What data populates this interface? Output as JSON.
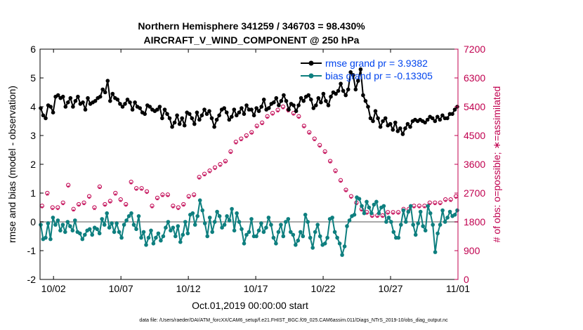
{
  "chart_data": {
    "type": "line",
    "title_line1": "Northern Hemisphere 341259 / 346703 = 98.430%",
    "title_line2": "AIRCRAFT_V_WIND_COMPONENT @ 250 hPa",
    "xlabel": "Oct.01,2019 00:00:00 start",
    "ylabel_left": "rmse and bias (model - observation)",
    "ylabel_right": "# of obs: o=possible; ∗=assimilated",
    "footer": "data file: /Users/raeder/DAI/ATM_forcXX/CAM6_setup/f.e21.FHIST_BGC.f09_025.CAM6assim.011/Diags_NTrS_2019-10/obs_diag_output.nc",
    "xlim": [
      1,
      32
    ],
    "ylim_left": [
      -2,
      6
    ],
    "ylim_right": [
      0,
      7200
    ],
    "x_ticks": [
      {
        "value": 2,
        "label": "10/02"
      },
      {
        "value": 7,
        "label": "10/07"
      },
      {
        "value": 12,
        "label": "10/12"
      },
      {
        "value": 17,
        "label": "10/17"
      },
      {
        "value": 22,
        "label": "10/22"
      },
      {
        "value": 27,
        "label": "10/27"
      },
      {
        "value": 32,
        "label": "11/01"
      }
    ],
    "y_left_ticks": [
      "-2",
      "-1",
      "0",
      "1",
      "2",
      "3",
      "4",
      "5",
      "6"
    ],
    "y_right_ticks": [
      "0",
      "900",
      "1800",
      "2700",
      "3600",
      "4500",
      "5400",
      "6300",
      "7200"
    ],
    "colors": {
      "rmse": "#000000",
      "bias": "#0e7f7f",
      "obs": "#c0004f",
      "legend_text": "#0044ee",
      "zero_line": "#aaaaaa"
    },
    "series": [
      {
        "name": "rmse grand pr = 3.9382",
        "axis": "left",
        "values": [
          3.95,
          3.7,
          3.6,
          4.05,
          4.0,
          3.8,
          4.35,
          4.4,
          4.3,
          4.35,
          4.0,
          4.15,
          4.3,
          4.0,
          4.2,
          4.35,
          4.1,
          4.15,
          3.9,
          4.3,
          4.1,
          4.15,
          4.2,
          4.3,
          4.35,
          4.6,
          4.5,
          4.9,
          4.2,
          4.45,
          4.3,
          4.25,
          4.1,
          4.0,
          4.1,
          4.25,
          4.15,
          3.9,
          4.15,
          4.0,
          3.95,
          3.8,
          3.75,
          4.05,
          4.0,
          3.9,
          3.85,
          3.9,
          4.0,
          3.6,
          3.9,
          3.75,
          3.6,
          3.3,
          3.45,
          3.7,
          3.4,
          3.6,
          3.35,
          3.8,
          3.75,
          3.6,
          3.4,
          3.8,
          3.55,
          3.7,
          3.9,
          3.75,
          3.85,
          3.6,
          3.3,
          3.55,
          3.7,
          3.9,
          3.95,
          3.8,
          3.55,
          3.65,
          3.9,
          3.7,
          3.8,
          3.95,
          3.75,
          4.05,
          3.9,
          3.9,
          3.7,
          3.95,
          3.85,
          4.0,
          4.25,
          3.9,
          3.95,
          4.1,
          4.15,
          4.3,
          4.05,
          4.2,
          4.4,
          4.2,
          3.9,
          4.1,
          4.05,
          3.85,
          4.05,
          4.3,
          4.2,
          4.35,
          4.4,
          4.25,
          3.95,
          4.05,
          4.3,
          4.15,
          4.45,
          4.2,
          4.05,
          4.35,
          4.5,
          4.45,
          4.55,
          4.8,
          4.55,
          4.4,
          4.6,
          5.2,
          5.1,
          4.6,
          4.9,
          5.3,
          4.4,
          4.2,
          4.0,
          3.6,
          3.5,
          3.85,
          3.6,
          3.3,
          3.5,
          3.6,
          3.35,
          3.4,
          3.2,
          3.45,
          3.15,
          3.25,
          3.05,
          3.25,
          3.4,
          3.3,
          3.5,
          3.55,
          3.5,
          3.55,
          3.5,
          3.45,
          3.55,
          3.65,
          3.6,
          3.5,
          3.65,
          3.55,
          3.7,
          3.6,
          3.6,
          3.75,
          3.75,
          3.9,
          4.0
        ]
      },
      {
        "name": "bias grand pr = -0.13305",
        "axis": "left",
        "values": [
          -0.1,
          -0.6,
          -0.55,
          -0.05,
          -0.6,
          0.15,
          -0.1,
          0.05,
          -0.3,
          -0.1,
          -0.35,
          0.0,
          -0.15,
          -0.3,
          0.05,
          -0.35,
          -0.4,
          -0.6,
          -0.45,
          -0.3,
          -0.25,
          -0.45,
          -0.2,
          -0.25,
          -0.4,
          0.1,
          -0.1,
          0.3,
          -0.2,
          -0.05,
          -0.35,
          -0.05,
          -0.35,
          -0.55,
          -0.1,
          0.05,
          0.2,
          0.3,
          -0.1,
          -0.25,
          0.2,
          -0.55,
          -0.35,
          -0.8,
          -0.55,
          -0.3,
          -0.75,
          -0.55,
          -0.4,
          -0.65,
          -0.5,
          -0.2,
          0.0,
          -0.3,
          -0.2,
          -0.5,
          -0.15,
          -0.7,
          -0.45,
          0.0,
          -0.4,
          0.25,
          0.3,
          -0.1,
          0.2,
          0.75,
          0.4,
          -0.05,
          -0.5,
          0.15,
          -0.35,
          0.0,
          0.35,
          0.2,
          -0.2,
          -0.1,
          0.2,
          0.05,
          0.45,
          -0.3,
          0.3,
          0.0,
          -0.25,
          -0.75,
          -0.45,
          -0.35,
          0.1,
          -0.5,
          -0.5,
          -0.3,
          -0.05,
          -0.35,
          -0.2,
          0.15,
          -0.1,
          -0.55,
          -0.75,
          -0.35,
          -0.1,
          -0.5,
          0.0,
          0.1,
          -0.35,
          -0.45,
          -0.8,
          -0.65,
          -0.35,
          -0.5,
          0.25,
          0.0,
          -0.55,
          -0.9,
          -0.35,
          -0.1,
          -0.5,
          -0.8,
          -0.75,
          -0.55,
          0.1,
          0.15,
          -0.35,
          -0.55,
          -0.75,
          -1.15,
          -0.85,
          -0.15,
          0.05,
          0.2,
          0.25,
          0.85,
          0.8,
          0.55,
          0.3,
          0.7,
          0.5,
          0.3,
          0.6,
          0.7,
          0.3,
          0.5,
          0.55,
          0.0,
          0.15,
          0.0,
          -0.35,
          -0.55,
          -0.55,
          -0.1,
          0.4,
          0.0,
          0.35,
          0.55,
          -0.1,
          -0.45,
          -0.05,
          0.35,
          -0.15,
          -0.3,
          0.55,
          0.3,
          -0.1,
          -1.05,
          -0.4,
          -0.1,
          0.4,
          0.0,
          0.15,
          0.35,
          0.2,
          0.25,
          0.4
        ]
      },
      {
        "name": "possible",
        "axis": "right",
        "values": [
          2300,
          2700,
          2250,
          2250,
          2400,
          2950,
          2200,
          2350,
          2400,
          2600,
          2250,
          2900,
          2350,
          2450,
          2700,
          2500,
          2350,
          3050,
          2850,
          2850,
          2750,
          2300,
          2550,
          2650,
          2650,
          2300,
          2250,
          2350,
          2600,
          2650,
          3200,
          3300,
          3400,
          3500,
          3600,
          3700,
          4000,
          4300,
          4400,
          4500,
          4600,
          4800,
          4900,
          5100,
          5200,
          5300,
          5400,
          5300,
          5200,
          5100,
          4800,
          4600,
          4400,
          4200,
          4000,
          3700,
          3400,
          3100,
          2800,
          2600,
          2400,
          2200,
          2100,
          2000,
          2000,
          2000,
          2100,
          2100,
          2100,
          2200,
          2200,
          2300,
          2300,
          2300,
          2400,
          2400,
          2400,
          2500,
          2500,
          2600
        ]
      },
      {
        "name": "assimilated",
        "axis": "right",
        "values": [
          2250,
          2650,
          2200,
          2200,
          2350,
          2900,
          2150,
          2300,
          2350,
          2550,
          2200,
          2850,
          2300,
          2400,
          2650,
          2450,
          2300,
          3000,
          2800,
          2800,
          2700,
          2250,
          2500,
          2600,
          2600,
          2250,
          2200,
          2300,
          2550,
          2600,
          3150,
          3250,
          3350,
          3450,
          3550,
          3650,
          3950,
          4250,
          4350,
          4450,
          4550,
          4750,
          4850,
          5050,
          5150,
          5250,
          5350,
          5250,
          5150,
          5050,
          4750,
          4550,
          4350,
          4150,
          3950,
          3650,
          3350,
          3050,
          2750,
          2550,
          2350,
          2150,
          2050,
          1950,
          1950,
          1950,
          2050,
          2050,
          2050,
          2150,
          2150,
          2250,
          2250,
          2250,
          2350,
          2350,
          2350,
          2450,
          2450,
          2550
        ]
      }
    ],
    "legend": [
      {
        "label": "rmse grand pr = 3.9382",
        "series": 0
      },
      {
        "label": "bias grand pr = -0.13305",
        "series": 1
      }
    ]
  }
}
